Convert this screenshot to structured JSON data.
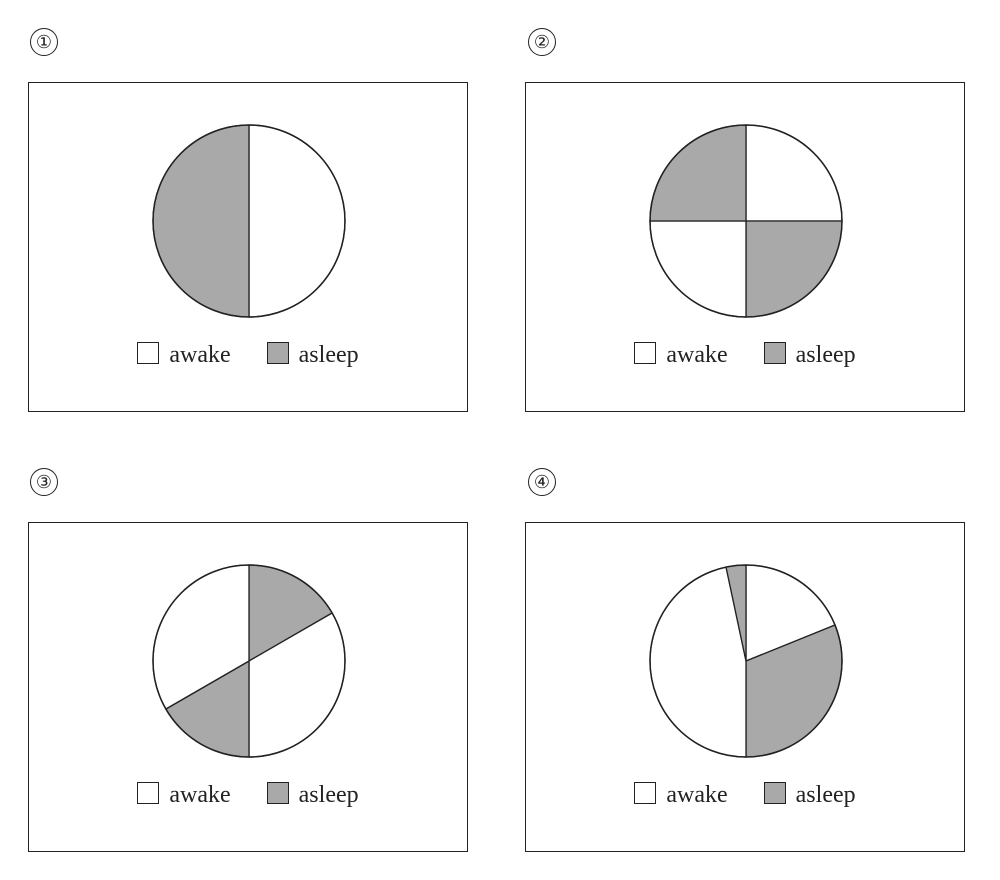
{
  "colors": {
    "awake": "#ffffff",
    "asleep": "#a9a9a9",
    "stroke": "#222222"
  },
  "chart_data": [
    {
      "type": "pie",
      "panel_label": "①",
      "legend": [
        {
          "name": "awake",
          "color": "#ffffff"
        },
        {
          "name": "asleep",
          "color": "#a9a9a9"
        }
      ],
      "slices": [
        {
          "category": "awake",
          "start_deg": 0,
          "end_deg": 180
        },
        {
          "category": "asleep",
          "start_deg": 180,
          "end_deg": 360
        }
      ]
    },
    {
      "type": "pie",
      "panel_label": "②",
      "legend": [
        {
          "name": "awake",
          "color": "#ffffff"
        },
        {
          "name": "asleep",
          "color": "#a9a9a9"
        }
      ],
      "slices": [
        {
          "category": "awake",
          "start_deg": 0,
          "end_deg": 90
        },
        {
          "category": "asleep",
          "start_deg": 90,
          "end_deg": 180
        },
        {
          "category": "awake",
          "start_deg": 180,
          "end_deg": 270
        },
        {
          "category": "asleep",
          "start_deg": 270,
          "end_deg": 360
        }
      ]
    },
    {
      "type": "pie",
      "panel_label": "③",
      "legend": [
        {
          "name": "awake",
          "color": "#ffffff"
        },
        {
          "name": "asleep",
          "color": "#a9a9a9"
        }
      ],
      "slices": [
        {
          "category": "asleep",
          "start_deg": 0,
          "end_deg": 60
        },
        {
          "category": "awake",
          "start_deg": 60,
          "end_deg": 180
        },
        {
          "category": "asleep",
          "start_deg": 180,
          "end_deg": 240
        },
        {
          "category": "awake",
          "start_deg": 240,
          "end_deg": 360
        }
      ]
    },
    {
      "type": "pie",
      "panel_label": "④",
      "legend": [
        {
          "name": "awake",
          "color": "#ffffff"
        },
        {
          "name": "asleep",
          "color": "#a9a9a9"
        }
      ],
      "slices": [
        {
          "category": "awake",
          "start_deg": 0,
          "end_deg": 68
        },
        {
          "category": "asleep",
          "start_deg": 68,
          "end_deg": 180
        },
        {
          "category": "awake",
          "start_deg": 180,
          "end_deg": 348
        },
        {
          "category": "asleep",
          "start_deg": 348,
          "end_deg": 360
        }
      ]
    }
  ]
}
